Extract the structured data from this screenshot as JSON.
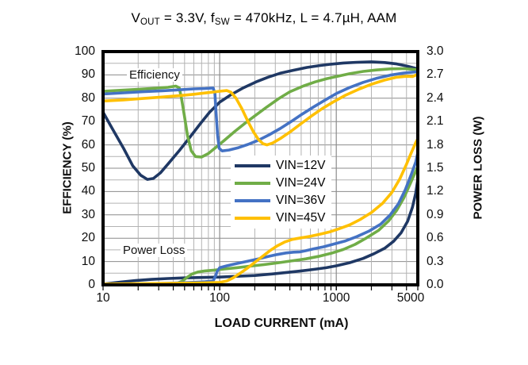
{
  "title_parts": [
    {
      "text": "V"
    },
    {
      "text": "OUT",
      "sub": true
    },
    {
      "text": " = 3.3V, f"
    },
    {
      "text": "SW",
      "sub": true
    },
    {
      "text": " = 470kHz, L = 4.7µH, AAM"
    }
  ],
  "chart_data": {
    "type": "line",
    "title": "VOUT = 3.3V, fSW = 470kHz, L = 4.7µH, AAM",
    "x_axis": {
      "label": "LOAD CURRENT  (mA)",
      "scale": "log",
      "range": [
        10,
        5000
      ],
      "tick_values": [
        10,
        100,
        1000,
        5000
      ],
      "tick_labels": [
        "10",
        "100",
        "1000",
        "5000"
      ],
      "major_gridlines": [
        100,
        1000
      ],
      "minor_gridlines": [
        20,
        30,
        40,
        50,
        60,
        70,
        80,
        90,
        200,
        300,
        400,
        500,
        600,
        700,
        800,
        900,
        2000,
        3000,
        4000
      ]
    },
    "left_axis": {
      "label": "EFFICIENCY  (%)",
      "range": [
        0,
        100
      ],
      "tick_step": 10,
      "minor_step": 5,
      "tick_labels": [
        "100",
        "90",
        "80",
        "70",
        "60",
        "50",
        "40",
        "30",
        "20",
        "10",
        "0"
      ]
    },
    "right_axis": {
      "label": "POWER LOSS (W)",
      "range": [
        0,
        3.0
      ],
      "tick_step": 0.3,
      "minor_step": 0.15,
      "tick_labels": [
        "3.0",
        "2.7",
        "2.4",
        "2.1",
        "1.8",
        "1.5",
        "1.2",
        "0.9",
        "0.6",
        "0.3",
        "0.0"
      ]
    },
    "annotations": [
      {
        "text": "Efficiency"
      },
      {
        "text": "Power Loss"
      }
    ],
    "legend": {
      "position": "center",
      "entries": [
        {
          "label": "VIN=12V",
          "color": "#1F3864"
        },
        {
          "label": "VIN=24V",
          "color": "#70AD47"
        },
        {
          "label": "VIN=36V",
          "color": "#4472C4"
        },
        {
          "label": "VIN=45V",
          "color": "#FFC000"
        }
      ]
    },
    "efficiency_series": [
      {
        "name": "VIN=12V",
        "axis": "left",
        "color": "#1F3864",
        "points": [
          [
            10,
            74
          ],
          [
            12,
            67
          ],
          [
            15,
            58.5
          ],
          [
            18,
            51
          ],
          [
            21,
            47
          ],
          [
            24,
            45.2
          ],
          [
            27,
            45.6
          ],
          [
            31,
            48
          ],
          [
            37,
            52.5
          ],
          [
            45,
            57.5
          ],
          [
            55,
            63
          ],
          [
            68,
            69
          ],
          [
            82,
            74
          ],
          [
            100,
            78.3
          ],
          [
            125,
            81.5
          ],
          [
            160,
            84.5
          ],
          [
            205,
            87
          ],
          [
            260,
            89
          ],
          [
            330,
            90.7
          ],
          [
            430,
            92
          ],
          [
            560,
            93.2
          ],
          [
            720,
            94
          ],
          [
            900,
            94.6
          ],
          [
            1150,
            95.1
          ],
          [
            1500,
            95.4
          ],
          [
            2000,
            95.6
          ],
          [
            2600,
            95.3
          ],
          [
            3300,
            94.7
          ],
          [
            4100,
            93.7
          ],
          [
            5000,
            92.6
          ]
        ]
      },
      {
        "name": "VIN=24V",
        "axis": "left",
        "color": "#70AD47",
        "points": [
          [
            10,
            83
          ],
          [
            14,
            83.4
          ],
          [
            20,
            83.8
          ],
          [
            28,
            84.3
          ],
          [
            36,
            84.7
          ],
          [
            42,
            85.2
          ],
          [
            45,
            84.5
          ],
          [
            47,
            80
          ],
          [
            50,
            72
          ],
          [
            53,
            64
          ],
          [
            57,
            57.5
          ],
          [
            62,
            55
          ],
          [
            70,
            54.8
          ],
          [
            80,
            56.3
          ],
          [
            92,
            58.8
          ],
          [
            110,
            62
          ],
          [
            135,
            65.8
          ],
          [
            165,
            69.3
          ],
          [
            200,
            72.4
          ],
          [
            250,
            76
          ],
          [
            320,
            79.8
          ],
          [
            400,
            82.8
          ],
          [
            520,
            85.2
          ],
          [
            660,
            87
          ],
          [
            830,
            88.4
          ],
          [
            1000,
            89.3
          ],
          [
            1300,
            90.5
          ],
          [
            1700,
            91.5
          ],
          [
            2200,
            92.1
          ],
          [
            2900,
            92.6
          ],
          [
            3800,
            92.7
          ],
          [
            5000,
            92.2
          ]
        ]
      },
      {
        "name": "VIN=36V",
        "axis": "left",
        "color": "#4472C4",
        "points": [
          [
            10,
            81.8
          ],
          [
            15,
            82.3
          ],
          [
            22,
            82.8
          ],
          [
            32,
            83.2
          ],
          [
            45,
            83.6
          ],
          [
            60,
            84
          ],
          [
            75,
            84.2
          ],
          [
            88,
            84.4
          ],
          [
            91,
            82
          ],
          [
            93,
            74
          ],
          [
            96,
            64
          ],
          [
            99,
            58.5
          ],
          [
            105,
            57.4
          ],
          [
            120,
            57.8
          ],
          [
            145,
            58.8
          ],
          [
            175,
            60.2
          ],
          [
            215,
            62
          ],
          [
            265,
            64.3
          ],
          [
            330,
            67
          ],
          [
            410,
            70
          ],
          [
            510,
            73.2
          ],
          [
            640,
            76.3
          ],
          [
            800,
            79.2
          ],
          [
            1000,
            82
          ],
          [
            1300,
            84.6
          ],
          [
            1700,
            86.8
          ],
          [
            2200,
            88.5
          ],
          [
            2900,
            89.9
          ],
          [
            3800,
            90.8
          ],
          [
            5000,
            91.4
          ]
        ]
      },
      {
        "name": "VIN=45V",
        "axis": "left",
        "color": "#FFC000",
        "points": [
          [
            10,
            78.8
          ],
          [
            15,
            79.3
          ],
          [
            22,
            79.9
          ],
          [
            32,
            80.5
          ],
          [
            45,
            81.1
          ],
          [
            60,
            81.7
          ],
          [
            80,
            82.4
          ],
          [
            100,
            83
          ],
          [
            115,
            83.3
          ],
          [
            125,
            82.6
          ],
          [
            138,
            80
          ],
          [
            155,
            75.5
          ],
          [
            175,
            70
          ],
          [
            195,
            65.5
          ],
          [
            215,
            62.3
          ],
          [
            235,
            60.5
          ],
          [
            255,
            60
          ],
          [
            285,
            60.8
          ],
          [
            330,
            62.7
          ],
          [
            400,
            65.5
          ],
          [
            490,
            68.8
          ],
          [
            610,
            72.3
          ],
          [
            760,
            75.6
          ],
          [
            950,
            78.5
          ],
          [
            1200,
            81.3
          ],
          [
            1550,
            83.8
          ],
          [
            2000,
            86
          ],
          [
            2600,
            87.8
          ],
          [
            3300,
            89
          ],
          [
            4000,
            89.4
          ],
          [
            4500,
            89.3
          ],
          [
            5000,
            90.3
          ]
        ]
      }
    ],
    "power_loss_series": [
      {
        "name": "VIN=12V",
        "axis": "right",
        "color": "#1F3864",
        "points": [
          [
            10,
            0.01
          ],
          [
            14,
            0.035
          ],
          [
            19,
            0.055
          ],
          [
            26,
            0.07
          ],
          [
            36,
            0.082
          ],
          [
            50,
            0.09
          ],
          [
            70,
            0.095
          ],
          [
            100,
            0.1
          ],
          [
            140,
            0.11
          ],
          [
            200,
            0.12
          ],
          [
            280,
            0.14
          ],
          [
            380,
            0.16
          ],
          [
            500,
            0.18
          ],
          [
            650,
            0.2
          ],
          [
            820,
            0.22
          ],
          [
            1000,
            0.245
          ],
          [
            1300,
            0.285
          ],
          [
            1700,
            0.34
          ],
          [
            2100,
            0.4
          ],
          [
            2600,
            0.47
          ],
          [
            3100,
            0.56
          ],
          [
            3600,
            0.67
          ],
          [
            4100,
            0.82
          ],
          [
            4500,
            1.0
          ],
          [
            4800,
            1.18
          ],
          [
            5000,
            1.36
          ]
        ]
      },
      {
        "name": "VIN=24V",
        "axis": "right",
        "color": "#70AD47",
        "points": [
          [
            10,
            0.005
          ],
          [
            20,
            0.008
          ],
          [
            32,
            0.012
          ],
          [
            43,
            0.018
          ],
          [
            48,
            0.05
          ],
          [
            53,
            0.1
          ],
          [
            58,
            0.14
          ],
          [
            65,
            0.165
          ],
          [
            75,
            0.18
          ],
          [
            90,
            0.19
          ],
          [
            110,
            0.205
          ],
          [
            140,
            0.22
          ],
          [
            180,
            0.24
          ],
          [
            240,
            0.26
          ],
          [
            320,
            0.285
          ],
          [
            420,
            0.31
          ],
          [
            550,
            0.335
          ],
          [
            700,
            0.365
          ],
          [
            900,
            0.405
          ],
          [
            1150,
            0.455
          ],
          [
            1450,
            0.52
          ],
          [
            1800,
            0.6
          ],
          [
            2300,
            0.7
          ],
          [
            2800,
            0.82
          ],
          [
            3300,
            0.96
          ],
          [
            3800,
            1.12
          ],
          [
            4300,
            1.3
          ],
          [
            4700,
            1.43
          ],
          [
            5000,
            1.52
          ]
        ]
      },
      {
        "name": "VIN=36V",
        "axis": "right",
        "color": "#4472C4",
        "points": [
          [
            10,
            0.008
          ],
          [
            20,
            0.013
          ],
          [
            35,
            0.02
          ],
          [
            55,
            0.03
          ],
          [
            75,
            0.04
          ],
          [
            88,
            0.05
          ],
          [
            92,
            0.11
          ],
          [
            95,
            0.17
          ],
          [
            100,
            0.22
          ],
          [
            115,
            0.245
          ],
          [
            140,
            0.275
          ],
          [
            175,
            0.305
          ],
          [
            215,
            0.335
          ],
          [
            260,
            0.365
          ],
          [
            310,
            0.39
          ],
          [
            370,
            0.41
          ],
          [
            430,
            0.42
          ],
          [
            490,
            0.425
          ],
          [
            550,
            0.44
          ],
          [
            650,
            0.465
          ],
          [
            780,
            0.49
          ],
          [
            950,
            0.525
          ],
          [
            1200,
            0.565
          ],
          [
            1500,
            0.62
          ],
          [
            1900,
            0.69
          ],
          [
            2400,
            0.78
          ],
          [
            2900,
            0.9
          ],
          [
            3400,
            1.04
          ],
          [
            3900,
            1.22
          ],
          [
            4400,
            1.42
          ],
          [
            4800,
            1.58
          ],
          [
            5000,
            1.7
          ]
        ]
      },
      {
        "name": "VIN=45V",
        "axis": "right",
        "color": "#FFC000",
        "points": [
          [
            10,
            0.01
          ],
          [
            20,
            0.015
          ],
          [
            40,
            0.02
          ],
          [
            70,
            0.026
          ],
          [
            100,
            0.032
          ],
          [
            115,
            0.05
          ],
          [
            130,
            0.09
          ],
          [
            150,
            0.15
          ],
          [
            175,
            0.22
          ],
          [
            200,
            0.29
          ],
          [
            235,
            0.37
          ],
          [
            270,
            0.44
          ],
          [
            310,
            0.5
          ],
          [
            360,
            0.55
          ],
          [
            420,
            0.585
          ],
          [
            500,
            0.605
          ],
          [
            600,
            0.625
          ],
          [
            720,
            0.65
          ],
          [
            870,
            0.68
          ],
          [
            1050,
            0.72
          ],
          [
            1300,
            0.77
          ],
          [
            1600,
            0.84
          ],
          [
            2000,
            0.93
          ],
          [
            2500,
            1.05
          ],
          [
            3000,
            1.19
          ],
          [
            3500,
            1.36
          ],
          [
            4000,
            1.55
          ],
          [
            4400,
            1.7
          ],
          [
            4800,
            1.83
          ],
          [
            5000,
            1.88
          ]
        ]
      }
    ],
    "style": {
      "grid_minor_color": "#b3b3b3",
      "grid_major_color": "#8c8c8c",
      "border_color": "#000000",
      "background": "#ffffff",
      "line_width": 3.6
    }
  }
}
